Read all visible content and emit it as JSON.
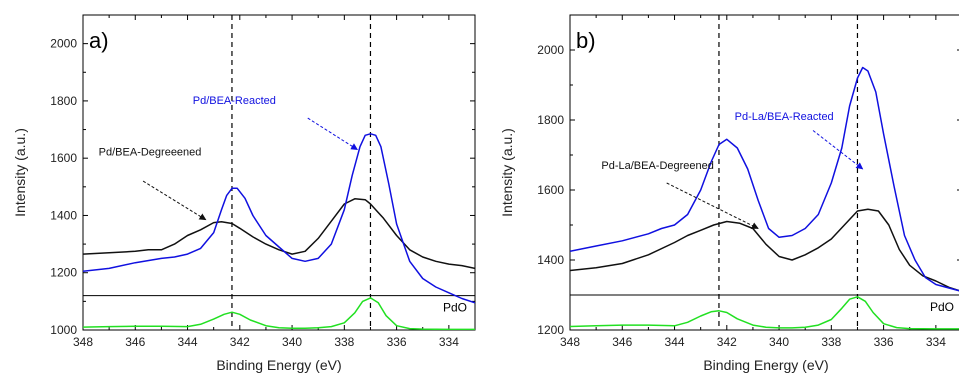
{
  "chart_data": [
    {
      "type": "line",
      "panel_label": "a)",
      "xlabel": "Binding Energy (eV)",
      "ylabel": "Intensity (a.u.)",
      "xlim": [
        348,
        333
      ],
      "ylim": [
        1000,
        2100
      ],
      "x_ticks": [
        348,
        346,
        344,
        342,
        340,
        338,
        336,
        334
      ],
      "y_ticks": [
        1000,
        1200,
        1400,
        1600,
        1800,
        2000
      ],
      "vlines": [
        342.3,
        337.0
      ],
      "ref_line_y": 1120,
      "ref_label": "PdO",
      "colors": {
        "black": "#111111",
        "blue": "#1010e0",
        "green": "#22e022"
      },
      "series": [
        {
          "name": "Pd/BEA-Degreeened",
          "color": "#111111",
          "x": [
            348,
            347,
            346,
            345.5,
            345,
            344.5,
            344,
            343.5,
            343,
            342.7,
            342.3,
            342,
            341.5,
            341,
            340.5,
            340,
            339.5,
            339,
            338.5,
            338,
            337.6,
            337.2,
            337,
            336.8,
            336.5,
            336,
            335.5,
            335,
            334.5,
            334,
            333.5,
            333
          ],
          "y": [
            1265,
            1270,
            1275,
            1280,
            1280,
            1300,
            1330,
            1350,
            1375,
            1378,
            1372,
            1355,
            1325,
            1300,
            1280,
            1265,
            1275,
            1320,
            1380,
            1440,
            1458,
            1455,
            1440,
            1420,
            1390,
            1330,
            1280,
            1255,
            1240,
            1230,
            1225,
            1215
          ]
        },
        {
          "name": "Pd/BEA-Reacted",
          "color": "#1010e0",
          "x": [
            348,
            347,
            346,
            345,
            344.5,
            344,
            343.5,
            343,
            342.7,
            342.5,
            342.3,
            342.1,
            341.8,
            341.5,
            341,
            340.5,
            340,
            339.5,
            339,
            338.5,
            338,
            337.7,
            337.4,
            337.2,
            337,
            336.8,
            336.6,
            336.3,
            336,
            335.5,
            335,
            334.5,
            334,
            333.5,
            333
          ],
          "y": [
            1205,
            1215,
            1235,
            1250,
            1255,
            1265,
            1285,
            1340,
            1420,
            1470,
            1495,
            1495,
            1460,
            1400,
            1330,
            1290,
            1250,
            1240,
            1250,
            1300,
            1420,
            1540,
            1640,
            1680,
            1685,
            1680,
            1640,
            1510,
            1370,
            1240,
            1180,
            1150,
            1130,
            1110,
            1095
          ]
        },
        {
          "name": "PdO",
          "color": "#22e022",
          "x": [
            348,
            347,
            346,
            345,
            344,
            343.5,
            343,
            342.6,
            342.3,
            342,
            341.6,
            341,
            340.5,
            340,
            339.5,
            339,
            338.5,
            338,
            337.6,
            337.3,
            337,
            336.7,
            336.4,
            336,
            335.5,
            335,
            334,
            333
          ],
          "y": [
            1010,
            1012,
            1013,
            1013,
            1012,
            1020,
            1038,
            1055,
            1062,
            1055,
            1035,
            1015,
            1008,
            1006,
            1006,
            1008,
            1012,
            1025,
            1060,
            1100,
            1112,
            1095,
            1050,
            1015,
            1005,
            1003,
            1002,
            1002
          ]
        }
      ],
      "annotations": [
        {
          "text": "Pd/BEA-Degreeened",
          "color": "#111111",
          "label_at": [
            347.4,
            1610
          ],
          "arrow_from": [
            345.7,
            1520
          ],
          "arrow_to": [
            343.3,
            1385
          ]
        },
        {
          "text": "Pd/BEA-Reacted",
          "color": "#1010e0",
          "label_at": [
            343.8,
            1790
          ],
          "arrow_from": [
            339.4,
            1740
          ],
          "arrow_to": [
            337.5,
            1630
          ]
        }
      ]
    },
    {
      "type": "line",
      "panel_label": "b)",
      "xlabel": "Binding Energy (eV)",
      "ylabel": "Intensity (a.u.)",
      "xlim": [
        348,
        333
      ],
      "ylim": [
        1200,
        2100
      ],
      "x_ticks": [
        348,
        346,
        344,
        342,
        340,
        338,
        336,
        334
      ],
      "y_ticks": [
        1200,
        1400,
        1600,
        1800,
        2000
      ],
      "vlines": [
        342.3,
        337.0
      ],
      "ref_line_y": 1300,
      "ref_label": "PdO",
      "colors": {
        "black": "#111111",
        "blue": "#1010e0",
        "green": "#22e022"
      },
      "series": [
        {
          "name": "Pd-La/BEA-Degreened",
          "color": "#111111",
          "x": [
            348,
            347,
            346,
            345,
            344,
            343.5,
            343,
            342.5,
            342,
            341.5,
            341,
            340.5,
            340,
            339.5,
            339,
            338.5,
            338,
            337.5,
            337,
            336.6,
            336.2,
            335.8,
            335.4,
            335,
            334.5,
            334,
            333.5,
            333
          ],
          "y": [
            1370,
            1378,
            1390,
            1415,
            1450,
            1470,
            1485,
            1500,
            1510,
            1505,
            1490,
            1445,
            1410,
            1400,
            1415,
            1435,
            1460,
            1500,
            1540,
            1545,
            1540,
            1500,
            1430,
            1385,
            1355,
            1340,
            1322,
            1310
          ]
        },
        {
          "name": "Pd-La/BEA-Reacted",
          "color": "#1010e0",
          "x": [
            348,
            347,
            346,
            345,
            344.5,
            344,
            343.5,
            343,
            342.6,
            342.3,
            342,
            341.6,
            341.2,
            340.8,
            340.4,
            340,
            339.5,
            339,
            338.5,
            338,
            337.6,
            337.3,
            337,
            336.8,
            336.6,
            336.3,
            336,
            335.6,
            335.2,
            334.8,
            334.4,
            334,
            333.5,
            333
          ],
          "y": [
            1425,
            1440,
            1455,
            1475,
            1490,
            1500,
            1530,
            1600,
            1680,
            1730,
            1745,
            1720,
            1660,
            1570,
            1490,
            1465,
            1470,
            1490,
            1530,
            1620,
            1720,
            1840,
            1920,
            1950,
            1940,
            1880,
            1760,
            1610,
            1470,
            1400,
            1350,
            1330,
            1320,
            1310
          ]
        },
        {
          "name": "PdO",
          "color": "#22e022",
          "x": [
            348,
            347,
            346,
            345,
            344,
            343.5,
            343,
            342.6,
            342.3,
            342,
            341.6,
            341,
            340.5,
            340,
            339.5,
            339,
            338.5,
            338,
            337.6,
            337.3,
            337,
            336.7,
            336.4,
            336,
            335.5,
            335,
            334,
            333
          ],
          "y": [
            1210,
            1212,
            1214,
            1214,
            1212,
            1222,
            1240,
            1252,
            1255,
            1250,
            1232,
            1214,
            1208,
            1206,
            1206,
            1208,
            1214,
            1230,
            1262,
            1288,
            1295,
            1282,
            1250,
            1218,
            1207,
            1204,
            1203,
            1203
          ]
        }
      ],
      "annotations": [
        {
          "text": "Pd-La/BEA-Degreened",
          "color": "#111111",
          "label_at": [
            346.8,
            1660
          ],
          "arrow_from": [
            344.3,
            1620
          ],
          "arrow_to": [
            340.8,
            1490
          ]
        },
        {
          "text": "Pd-La/BEA-Reacted",
          "color": "#1010e0",
          "label_at": [
            341.7,
            1800
          ],
          "arrow_from": [
            338.7,
            1770
          ],
          "arrow_to": [
            336.8,
            1660
          ]
        }
      ]
    }
  ]
}
